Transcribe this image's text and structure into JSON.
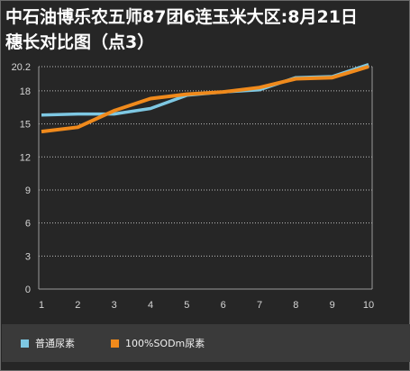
{
  "chart_data": {
    "type": "line",
    "title_line1": "中石油博乐农五师87团6连玉米大区:8月21日",
    "title_line2": "穗长对比图（点3）",
    "x": [
      1,
      2,
      3,
      4,
      5,
      6,
      7,
      8,
      9,
      10
    ],
    "x_tick_labels": [
      "1",
      "2",
      "3",
      "4",
      "5",
      "6",
      "7",
      "8",
      "9",
      "10"
    ],
    "y_tick_labels": [
      "0",
      "3",
      "6",
      "9",
      "12",
      "15",
      "18",
      "20.2"
    ],
    "y_ticks": [
      0,
      3,
      6,
      9,
      12,
      15,
      18,
      20.2
    ],
    "ylim": [
      0,
      20.2
    ],
    "grid": true,
    "legend_position": "bottom",
    "series": [
      {
        "name": "普通尿素",
        "color": "#7ec8e3",
        "values": [
          15.8,
          15.9,
          15.9,
          16.4,
          17.6,
          17.9,
          18.1,
          19.2,
          19.3,
          20.4
        ]
      },
      {
        "name": "100%SODm尿素",
        "color": "#f08a1c",
        "values": [
          14.3,
          14.7,
          16.2,
          17.3,
          17.7,
          17.9,
          18.3,
          19.1,
          19.2,
          20.2
        ]
      }
    ]
  }
}
